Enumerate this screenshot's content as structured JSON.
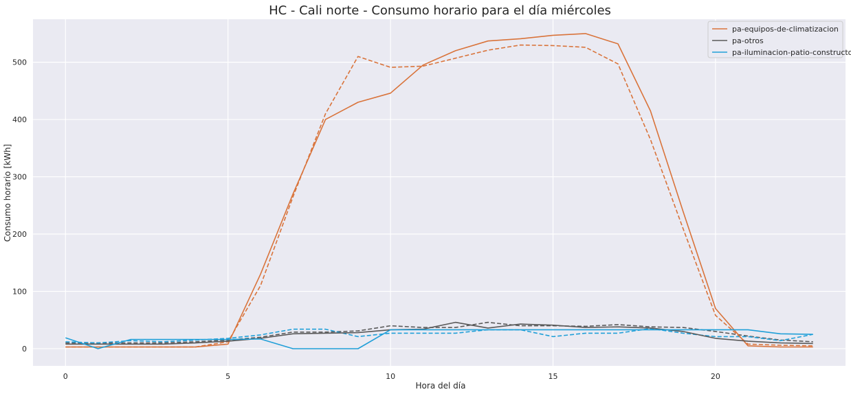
{
  "chart_data": {
    "type": "line",
    "title": "HC - Cali norte - Consumo horario para el día miércoles",
    "xlabel": "Hora del día",
    "ylabel": "Consumo horario [kWh]",
    "xlim": [
      -1,
      24
    ],
    "ylim": [
      -30,
      575
    ],
    "xticks": [
      0,
      5,
      10,
      15,
      20
    ],
    "yticks": [
      0,
      100,
      200,
      300,
      400,
      500
    ],
    "grid": true,
    "background": "#eaeaf2",
    "legend_position": "top-right",
    "x": [
      0,
      1,
      2,
      3,
      4,
      5,
      6,
      7,
      8,
      9,
      10,
      11,
      12,
      13,
      14,
      15,
      16,
      17,
      18,
      19,
      20,
      21,
      22,
      23
    ],
    "series": [
      {
        "name": "pa-equipos-de-climatizacion",
        "color": "#d9733a",
        "style": "solid",
        "legend": true,
        "values": [
          3,
          3,
          3,
          3,
          3,
          8,
          130,
          270,
          400,
          430,
          446,
          495,
          520,
          537,
          541,
          547,
          550,
          532,
          415,
          240,
          70,
          5,
          3,
          3
        ]
      },
      {
        "name": "pa-otros",
        "color": "#595959",
        "style": "solid",
        "legend": true,
        "values": [
          8,
          8,
          8,
          8,
          10,
          13,
          18,
          26,
          27,
          28,
          33,
          34,
          46,
          36,
          43,
          41,
          37,
          38,
          36,
          30,
          18,
          13,
          10,
          9
        ]
      },
      {
        "name": "pa-iluminacion-patio-constructor",
        "color": "#1f9fd8",
        "style": "solid",
        "legend": true,
        "values": [
          19,
          0,
          16,
          16,
          16,
          16,
          17,
          0,
          0,
          0,
          33,
          33,
          33,
          33,
          33,
          33,
          33,
          33,
          33,
          33,
          33,
          33,
          26,
          25
        ]
      },
      {
        "name": "",
        "color": "#d9733a",
        "style": "dashed",
        "legend": false,
        "values": [
          3,
          3,
          3,
          3,
          3,
          12,
          110,
          265,
          410,
          510,
          491,
          493,
          507,
          521,
          530,
          529,
          526,
          497,
          365,
          210,
          58,
          8,
          6,
          5
        ]
      },
      {
        "name": "",
        "color": "#595959",
        "style": "dashed",
        "legend": false,
        "values": [
          10,
          10,
          10,
          10,
          12,
          15,
          20,
          29,
          29,
          31,
          40,
          37,
          37,
          46,
          40,
          40,
          39,
          42,
          38,
          37,
          30,
          22,
          15,
          12
        ]
      },
      {
        "name": "",
        "color": "#1f9fd8",
        "style": "dashed",
        "legend": false,
        "values": [
          12,
          10,
          14,
          12,
          15,
          18,
          24,
          34,
          34,
          21,
          27,
          27,
          27,
          33,
          33,
          21,
          27,
          27,
          35,
          27,
          21,
          21,
          14,
          25
        ]
      }
    ]
  }
}
